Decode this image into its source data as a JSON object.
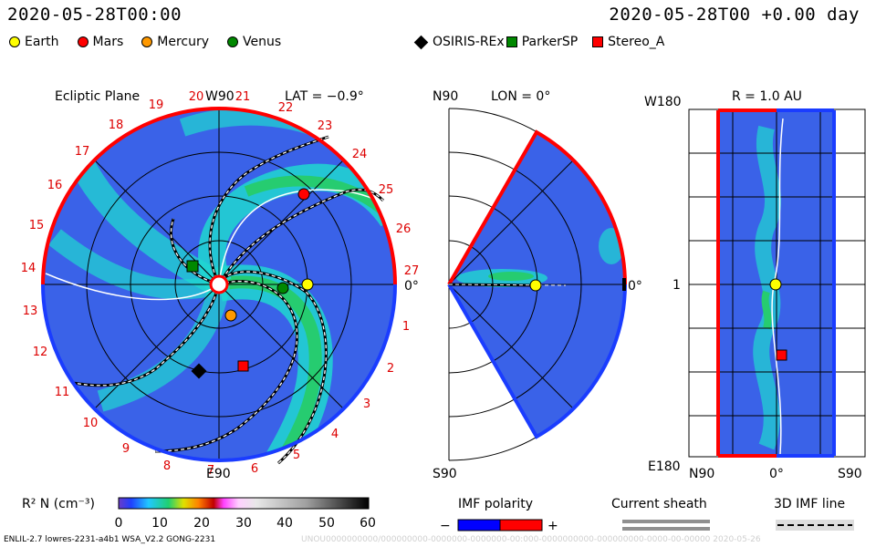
{
  "header": {
    "left_title": "2020-05-28T00:00",
    "right_title": "2020-05-28T00 +0.00 day"
  },
  "legend": [
    {
      "label": "Earth",
      "color": "#ffff00",
      "shape": "circle"
    },
    {
      "label": "Mars",
      "color": "#ff0000",
      "shape": "circle"
    },
    {
      "label": "Mercury",
      "color": "#ff9900",
      "shape": "circle"
    },
    {
      "label": "Venus",
      "color": "#008800",
      "shape": "circle"
    },
    {
      "label": "OSIRIS-REx",
      "color": "#000000",
      "shape": "diamond"
    },
    {
      "label": "ParkerSP",
      "color": "#008800",
      "shape": "square"
    },
    {
      "label": "Stereo_A",
      "color": "#ff0000",
      "shape": "square"
    }
  ],
  "panels": {
    "ecliptic": {
      "title": "Ecliptic Plane",
      "top_label": "W90",
      "lat_label": "LAT = −0.9°",
      "bottom_label": "E90",
      "right_label": "0°",
      "carrington_numbers": [
        "1",
        "2",
        "3",
        "4",
        "5",
        "6",
        "7",
        "8",
        "9",
        "10",
        "11",
        "12",
        "13",
        "14",
        "15",
        "16",
        "17",
        "18",
        "19",
        "20",
        "21",
        "22",
        "23",
        "24",
        "25",
        "26",
        "27"
      ]
    },
    "meridional": {
      "top_label": "N90",
      "lon_label": "LON = 0°",
      "bottom_label": "S90",
      "right_label": "0°"
    },
    "radial": {
      "title": "R = 1.0 AU",
      "top_left_label": "W180",
      "mid_left_label": "1",
      "bottom_left_label": "E180",
      "x_labels": [
        "N90",
        "0°",
        "S90"
      ]
    }
  },
  "colorbar": {
    "label": "R² N (cm⁻³)",
    "ticks": [
      "0",
      "10",
      "20",
      "30",
      "40",
      "50",
      "60"
    ]
  },
  "imf": {
    "title": "IMF polarity",
    "minus": "−",
    "plus": "+"
  },
  "current_sheath": {
    "title": "Current sheath"
  },
  "imf_line": {
    "title": "3D IMF line"
  },
  "footer": {
    "left": "ENLIL-2.7 lowres-2231-a4b1 WSA_V2.2 GONG-2231",
    "right": "UNOU0000000000/000000000-0000000-0000000-00:000-0000000000-000000000-0000-00-00000   2020-05-26"
  },
  "colors": {
    "background_blue": "#3a62e8",
    "cyan": "#20d8d0",
    "green": "#26cc70",
    "red_rim": "#ff0000",
    "blue_rim": "#1a3cff"
  },
  "chart_data": {
    "type": "heatmap",
    "title": "Ecliptic Plane",
    "colorbar_range": [
      0,
      60
    ],
    "bodies": [
      {
        "name": "Earth",
        "r_au": 1.0,
        "lon_deg": 0
      },
      {
        "name": "Mars",
        "r_au": 1.52,
        "lon_deg": 45
      },
      {
        "name": "Mercury",
        "r_au": 0.33,
        "lon_deg": -88
      },
      {
        "name": "Venus",
        "r_au": 0.72,
        "lon_deg": -5
      },
      {
        "name": "OSIRIS-REx",
        "r_au": 1.05,
        "lon_deg": -115
      },
      {
        "name": "ParkerSP",
        "r_au": 0.3,
        "lon_deg": 150
      },
      {
        "name": "Stereo_A",
        "r_au": 1.0,
        "lon_deg": -76
      }
    ]
  }
}
